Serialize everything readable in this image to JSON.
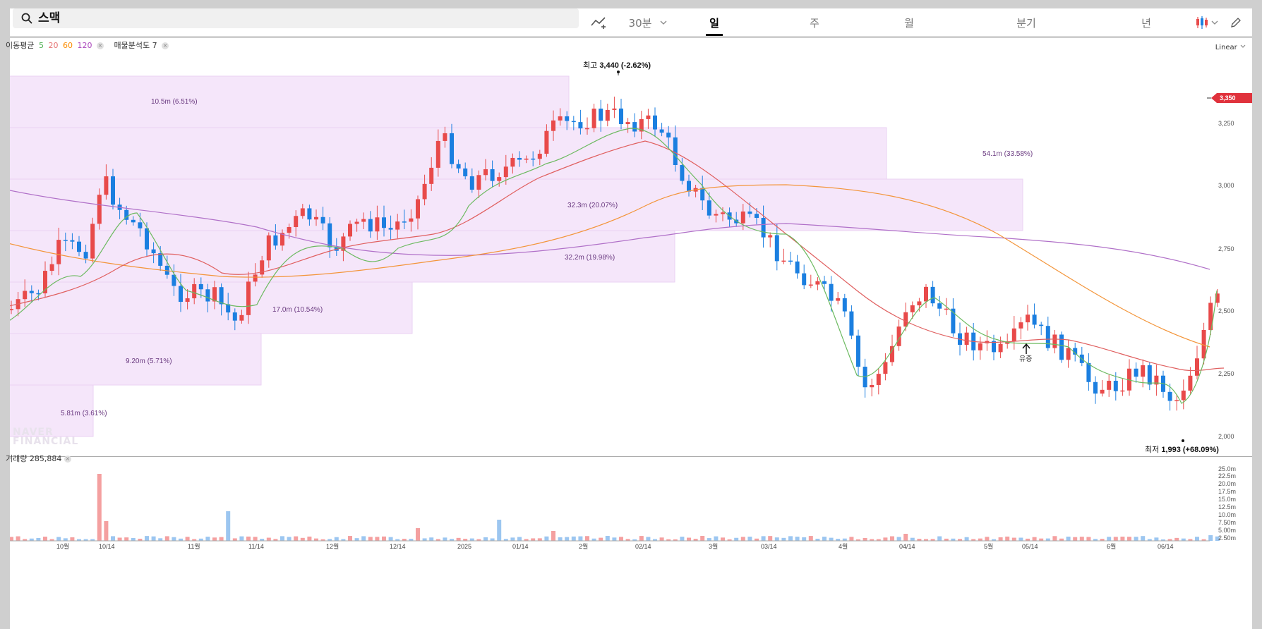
{
  "search": {
    "value": "스맥"
  },
  "toolbar": {
    "interval_30m": "30분",
    "periods": [
      "일",
      "주",
      "월",
      "분기",
      "년"
    ],
    "active_period": "일"
  },
  "indicators": {
    "ma_label": "이동평균",
    "ma_periods": [
      {
        "value": "5",
        "color": "#4caf50"
      },
      {
        "value": "20",
        "color": "#e57373"
      },
      {
        "value": "60",
        "color": "#fb8c00"
      },
      {
        "value": "120",
        "color": "#ab47bc"
      }
    ],
    "volume_profile_label": "매물분석도 7"
  },
  "scale_mode": "Linear",
  "current_price": "3,350",
  "price_axis_ticks": [
    "3,250",
    "3,000",
    "2,750",
    "2,500",
    "2,250",
    "2,000"
  ],
  "high_annotation": {
    "label": "최고",
    "value": "3,440 (-2.62%)"
  },
  "low_annotation": {
    "label": "최저",
    "value": "1,993 (+68.09%)"
  },
  "event_marker": "유증",
  "volume": {
    "label": "거래량 285,884"
  },
  "volume_axis_ticks": [
    "25.0m",
    "22.5m",
    "20.0m",
    "17.5m",
    "15.0m",
    "12.5m",
    "10.0m",
    "7.50m",
    "5.00m",
    "2.50m"
  ],
  "x_axis_ticks": [
    "10월",
    "10/14",
    "11월",
    "11/14",
    "12월",
    "12/14",
    "2025",
    "01/14",
    "2월",
    "02/14",
    "3월",
    "03/14",
    "4월",
    "04/14",
    "5월",
    "05/14",
    "6월",
    "06/14"
  ],
  "watermark": [
    "NAVER",
    "FINANCIAL"
  ],
  "colors": {
    "up": "#e84a4a",
    "down": "#1b7fe0",
    "profile_fill": "#f5e6fa",
    "current_price_bg": "#e0323c"
  },
  "chart_data": {
    "type": "candlestick",
    "ylim": [
      1993,
      3440
    ],
    "price_high": 3440,
    "price_low": 1993,
    "current": 3350,
    "volume_profile": [
      {
        "price_from": 3200,
        "price_to": 3440,
        "volume": "10.5m (6.51%)"
      },
      {
        "price_from": 2970,
        "price_to": 3200,
        "volume": "54.1m (33.58%)"
      },
      {
        "price_from": 2730,
        "price_to": 2970,
        "volume": "32.3m (20.07%)"
      },
      {
        "price_from": 2500,
        "price_to": 2730,
        "volume": "32.2m (19.98%)"
      },
      {
        "price_from": 2270,
        "price_to": 2500,
        "volume": "17.0m (10.54%)"
      },
      {
        "price_from": 2040,
        "price_to": 2270,
        "volume": "9.20m (5.71%)"
      },
      {
        "price_from": 1993,
        "price_to": 2040,
        "volume": "5.81m (3.61%)"
      }
    ]
  }
}
